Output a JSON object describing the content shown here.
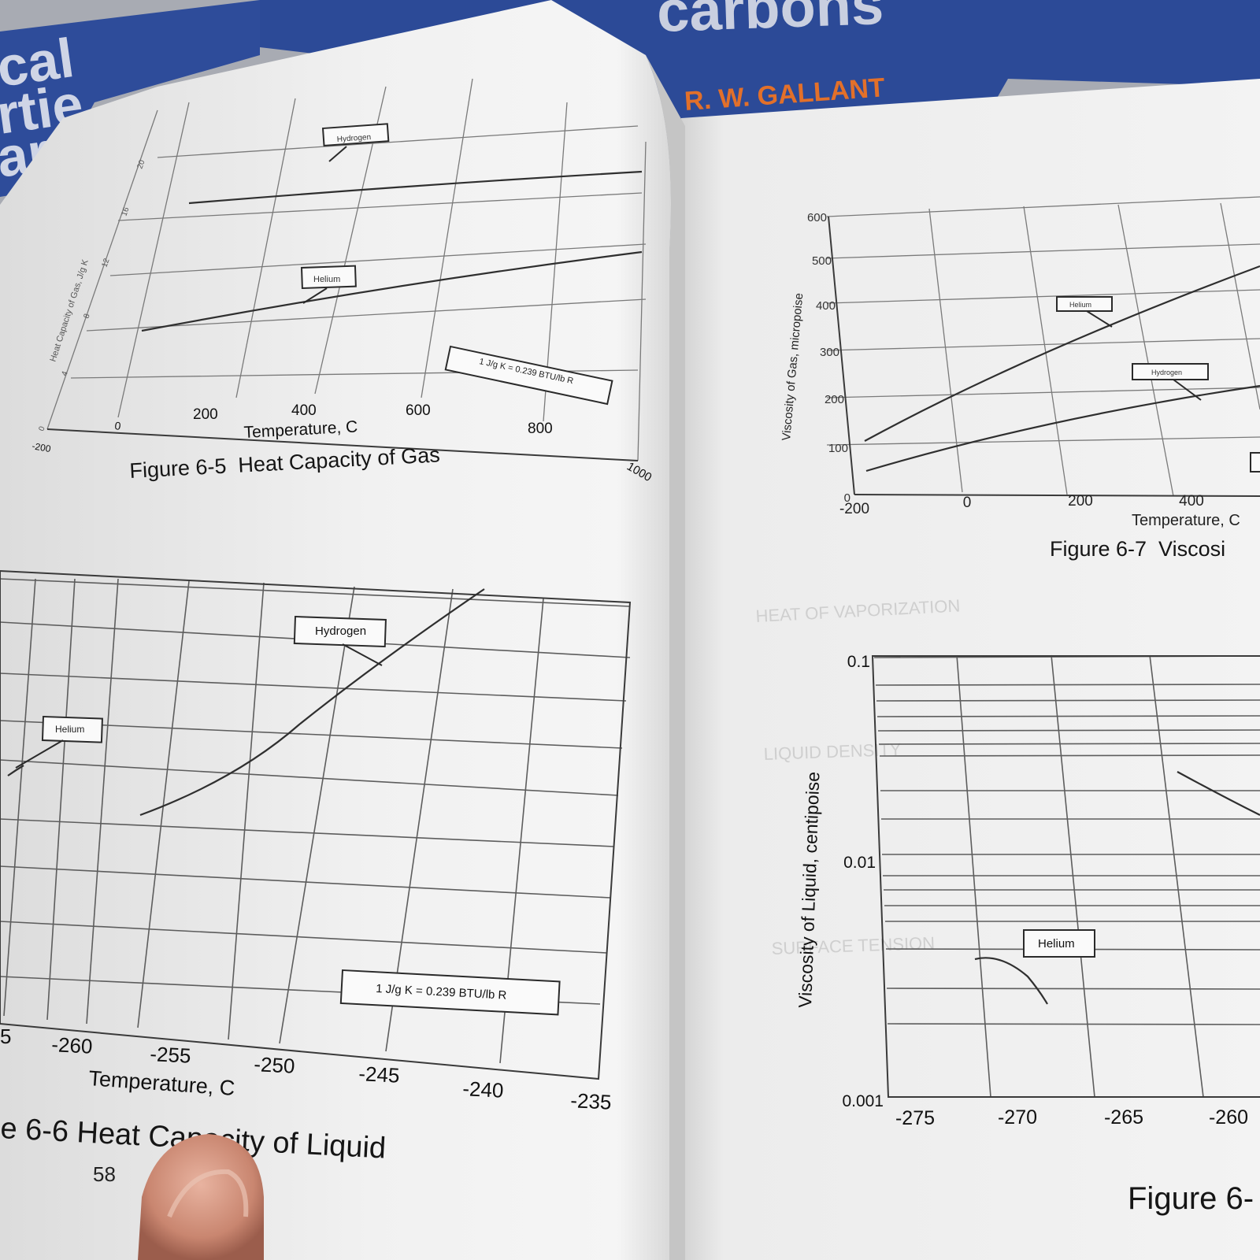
{
  "cover": {
    "title_fragment": "carbons",
    "author_fragment": "R. W. GALLANT",
    "left_fragments": [
      "cal",
      "rtie",
      "ar"
    ]
  },
  "left_page": {
    "page_number": "58",
    "figure_6_5": {
      "caption": "Figure 6-5  Heat Capacity of Gas",
      "xlabel": "Temperature, C",
      "ylabel": "Heat Capacity of Gas, J/g K",
      "conversion_note": "1 J/g K = 0.239 BTU/lb R",
      "series_labels": [
        "Hydrogen",
        "Helium"
      ],
      "x_ticks": [
        "-200",
        "0",
        "200",
        "400",
        "600",
        "800",
        "1000"
      ],
      "y_ticks": [
        "0",
        "4",
        "8",
        "12",
        "16",
        "20"
      ]
    },
    "figure_6_6": {
      "caption": "e 6-6 Heat Capacity of Liquid",
      "xlabel": "Temperature, C",
      "conversion_note": "1 J/g K = 0.239 BTU/lb R",
      "series_labels": [
        "Hydrogen",
        "Helium"
      ],
      "x_ticks": [
        "5",
        "-260",
        "-255",
        "-250",
        "-245",
        "-240",
        "-235"
      ]
    }
  },
  "right_page": {
    "figure_6_7": {
      "caption": "Figure 6-7  Viscosi",
      "xlabel": "Temperature, C",
      "ylabel": "Viscosity of Gas, micropoise",
      "series_labels": [
        "Helium",
        "Hydrogen"
      ],
      "x_ticks": [
        "-200",
        "0",
        "200",
        "400"
      ],
      "y_ticks": [
        "0",
        "100",
        "200",
        "300",
        "400",
        "500",
        "600"
      ]
    },
    "figure_6_8": {
      "caption": "Figure 6-",
      "ylabel": "Viscosity of Liquid, centipoise",
      "series_labels": [
        "Helium"
      ],
      "x_ticks": [
        "-275",
        "-270",
        "-265",
        "-260"
      ],
      "y_ticks": [
        "0.1",
        "0.01",
        "0.001"
      ]
    },
    "bleed_through_text": [
      "HEAT OF VAPORIZATION",
      "LIQUID DENSITY",
      "SURFACE TENSION"
    ]
  }
}
